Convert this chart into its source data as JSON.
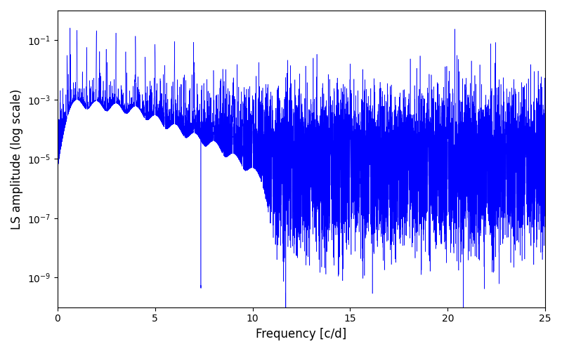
{
  "title": "",
  "xlabel": "Frequency [c/d]",
  "ylabel": "LS amplitude (log scale)",
  "xlim": [
    0,
    25
  ],
  "ylim": [
    1e-10,
    1.0
  ],
  "yticks": [
    1e-09,
    1e-07,
    1e-05,
    0.001,
    0.1
  ],
  "line_color": "#0000ff",
  "line_width": 0.4,
  "background_color": "#ffffff",
  "freq_max": 25.0,
  "num_points": 15000,
  "figsize": [
    8.0,
    5.0
  ],
  "dpi": 100
}
